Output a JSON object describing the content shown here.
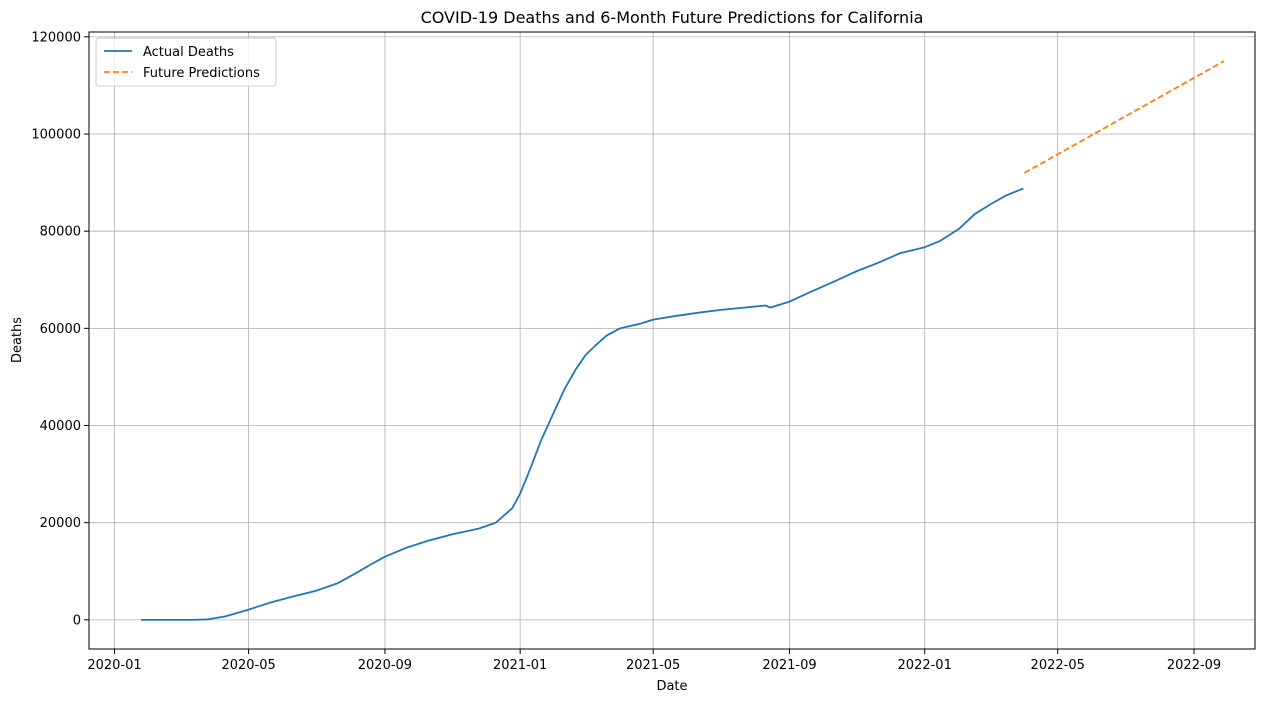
{
  "chart_data": {
    "type": "line",
    "title": "COVID-19 Deaths and 6-Month Future Predictions for California",
    "xlabel": "Date",
    "ylabel": "Deaths",
    "grid": true,
    "legend_position": "top-left",
    "xlim": [
      "2019-12-09",
      "2022-10-26"
    ],
    "ylim": [
      -6000,
      121000
    ],
    "x_ticks": [
      "2020-01",
      "2020-05",
      "2020-09",
      "2021-01",
      "2021-05",
      "2021-09",
      "2022-01",
      "2022-05",
      "2022-09"
    ],
    "y_ticks": [
      0,
      20000,
      40000,
      60000,
      80000,
      100000,
      120000
    ],
    "series": [
      {
        "name": "Actual Deaths",
        "color": "#1f77b4",
        "style": "solid",
        "x": [
          "2020-01-25",
          "2020-02-15",
          "2020-03-10",
          "2020-03-25",
          "2020-04-10",
          "2020-05-01",
          "2020-05-20",
          "2020-06-10",
          "2020-07-01",
          "2020-07-20",
          "2020-08-05",
          "2020-08-20",
          "2020-09-01",
          "2020-09-20",
          "2020-10-10",
          "2020-11-01",
          "2020-11-25",
          "2020-12-10",
          "2020-12-25",
          "2021-01-01",
          "2021-01-10",
          "2021-01-20",
          "2021-02-01",
          "2021-02-10",
          "2021-02-20",
          "2021-03-01",
          "2021-03-10",
          "2021-03-20",
          "2021-04-01",
          "2021-04-20",
          "2021-05-01",
          "2021-05-20",
          "2021-06-10",
          "2021-07-01",
          "2021-07-20",
          "2021-08-10",
          "2021-08-15",
          "2021-09-01",
          "2021-09-20",
          "2021-10-10",
          "2021-11-01",
          "2021-11-20",
          "2021-12-10",
          "2022-01-01",
          "2022-01-15",
          "2022-02-01",
          "2022-02-15",
          "2022-03-01",
          "2022-03-15",
          "2022-03-31"
        ],
        "values": [
          0,
          0,
          0,
          100,
          700,
          2100,
          3500,
          4800,
          6000,
          7500,
          9500,
          11500,
          13000,
          14800,
          16300,
          17600,
          18800,
          20000,
          23000,
          26000,
          31000,
          37000,
          43000,
          47500,
          51500,
          54500,
          56500,
          58500,
          60000,
          61000,
          61800,
          62500,
          63200,
          63800,
          64200,
          64700,
          64300,
          65500,
          67500,
          69500,
          71800,
          73500,
          75500,
          76700,
          78000,
          80500,
          83500,
          85500,
          87300,
          88800
        ]
      },
      {
        "name": "Future Predictions",
        "color": "#ff7f0e",
        "style": "dashed",
        "x": [
          "2022-04-01",
          "2022-09-28"
        ],
        "values": [
          92000,
          115000
        ]
      }
    ]
  }
}
